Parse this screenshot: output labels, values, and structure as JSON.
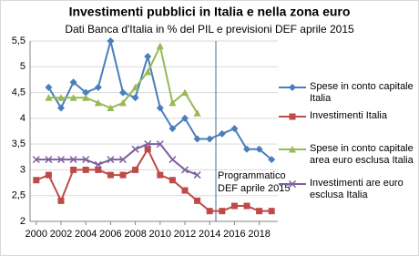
{
  "chart_data": {
    "type": "line",
    "title": "Investimenti pubblici in Italia e nella zona euro",
    "subtitle": "Dati Banca d'Italia in % del PIL e previsioni DEF aprile 2015",
    "annotation": [
      "Programmatico",
      "DEF aprile 2015"
    ],
    "divider_x": 2014.5,
    "x": [
      2000,
      2001,
      2002,
      2003,
      2004,
      2005,
      2006,
      2007,
      2008,
      2009,
      2010,
      2011,
      2012,
      2013,
      2014,
      2015,
      2016,
      2017,
      2018,
      2019
    ],
    "xlim": [
      1999.5,
      2019.5
    ],
    "xticks": [
      2000,
      2002,
      2004,
      2006,
      2008,
      2010,
      2012,
      2014,
      2016,
      2018
    ],
    "ylim": [
      2,
      5.5
    ],
    "yticks": [
      {
        "value": 2,
        "label": "2"
      },
      {
        "value": 2.5,
        "label": "2,5"
      },
      {
        "value": 3,
        "label": "3"
      },
      {
        "value": 3.5,
        "label": "3,5"
      },
      {
        "value": 4,
        "label": "4"
      },
      {
        "value": 4.5,
        "label": "4,5"
      },
      {
        "value": 5,
        "label": "5"
      },
      {
        "value": 5.5,
        "label": "5,5"
      }
    ],
    "grid": true,
    "legend": "right",
    "series": [
      {
        "name": "Spese in conto capitale Italia",
        "color": "#4a7ebb",
        "marker": "diamond",
        "values": [
          null,
          4.6,
          4.2,
          4.7,
          4.5,
          4.6,
          5.5,
          4.5,
          4.4,
          5.2,
          4.2,
          3.8,
          4.0,
          3.6,
          3.6,
          3.7,
          3.8,
          3.4,
          3.4,
          3.2
        ]
      },
      {
        "name": "Investimenti Italia",
        "color": "#be4b48",
        "marker": "square",
        "values": [
          2.8,
          2.9,
          2.4,
          3.0,
          3.0,
          3.0,
          2.9,
          2.9,
          3.0,
          3.4,
          2.9,
          2.8,
          2.6,
          2.4,
          2.2,
          2.2,
          2.3,
          2.3,
          2.2,
          2.2
        ]
      },
      {
        "name": "Spese in conto capitale area euro esclusa Italia",
        "color": "#98b954",
        "marker": "triangle",
        "values": [
          null,
          4.4,
          4.4,
          4.4,
          4.4,
          4.3,
          4.2,
          4.3,
          4.6,
          4.9,
          5.4,
          4.3,
          4.5,
          4.1,
          null,
          null,
          null,
          null,
          null,
          null
        ]
      },
      {
        "name": "Investimenti are euro esclusa Italia",
        "color": "#7d60a0",
        "marker": "x",
        "values": [
          3.2,
          3.2,
          3.2,
          3.2,
          3.2,
          3.1,
          3.2,
          3.2,
          3.4,
          3.5,
          3.5,
          3.2,
          3.0,
          2.9,
          null,
          null,
          null,
          null,
          null,
          null
        ]
      }
    ]
  }
}
